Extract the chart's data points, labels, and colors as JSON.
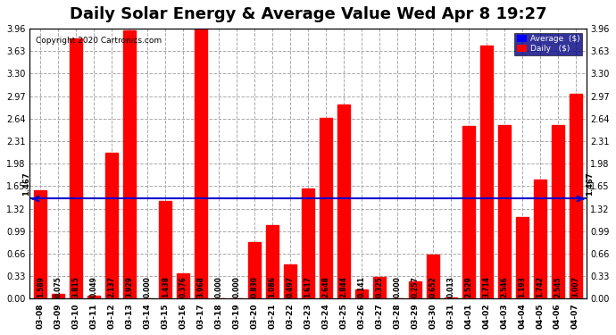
{
  "title": "Daily Solar Energy & Average Value Wed Apr 8 19:27",
  "copyright": "Copyright 2020 Cartronics.com",
  "average_value": 1.467,
  "categories": [
    "03-08",
    "03-09",
    "03-10",
    "03-11",
    "03-12",
    "03-13",
    "03-14",
    "03-15",
    "03-16",
    "03-17",
    "03-18",
    "03-19",
    "03-20",
    "03-21",
    "03-22",
    "03-23",
    "03-24",
    "03-25",
    "03-26",
    "03-27",
    "03-28",
    "03-29",
    "03-30",
    "03-31",
    "04-01",
    "04-02",
    "04-03",
    "04-04",
    "04-05",
    "04-06",
    "04-07"
  ],
  "values": [
    1.589,
    0.075,
    3.815,
    0.049,
    2.137,
    3.929,
    0.0,
    1.438,
    0.376,
    3.968,
    0.0,
    0.0,
    0.83,
    1.086,
    0.497,
    1.617,
    2.648,
    2.844,
    0.141,
    0.325,
    0.0,
    0.257,
    0.652,
    0.013,
    2.529,
    3.714,
    2.546,
    1.193,
    1.742,
    2.545,
    3.007
  ],
  "bar_color": "#ff0000",
  "avg_line_color": "#0000cc",
  "ylim": [
    0,
    3.96
  ],
  "yticks": [
    0.0,
    0.33,
    0.66,
    0.99,
    1.32,
    1.65,
    1.98,
    2.31,
    2.64,
    2.97,
    3.3,
    3.63,
    3.96
  ],
  "background_color": "#ffffff",
  "plot_bg_color": "#ffffff",
  "grid_color": "#aaaaaa",
  "title_fontsize": 13,
  "bar_label_fontsize": 5.5,
  "avg_label": "Average  ($)",
  "daily_label": "Daily   ($)"
}
